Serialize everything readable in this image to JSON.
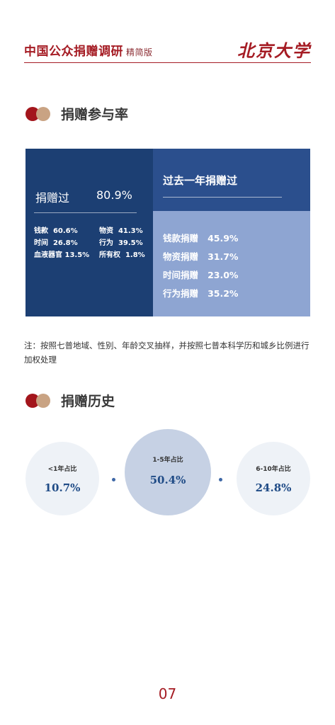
{
  "header": {
    "title": "中国公众捐赠调研",
    "subtitle": "精简版",
    "logo": "北京大学"
  },
  "section1": {
    "title": "捐赠参与率"
  },
  "left_panel": {
    "label": "捐赠过",
    "value": "80.9%",
    "items": [
      {
        "name": "钱款",
        "value": "60.6%"
      },
      {
        "name": "物资",
        "value": "41.3%"
      },
      {
        "name": "时间",
        "value": "26.8%"
      },
      {
        "name": "行为",
        "value": "39.5%"
      },
      {
        "name": "血液器官",
        "value": "13.5%"
      },
      {
        "name": "所有权",
        "value": "1.8%"
      }
    ]
  },
  "right_panel": {
    "title": "过去一年捐赠过",
    "items": [
      {
        "name": "钱款捐赠",
        "value": "45.9%"
      },
      {
        "name": "物资捐赠",
        "value": "31.7%"
      },
      {
        "name": "时间捐赠",
        "value": "23.0%"
      },
      {
        "name": "行为捐赠",
        "value": "35.2%"
      }
    ]
  },
  "note": "注：按照七普地域、性别、年龄交叉抽样，并按照七普本科学历和城乡比例进行加权处理",
  "section2": {
    "title": "捐赠历史",
    "circles": [
      {
        "label": "<1年占比",
        "value": "10.7%"
      },
      {
        "label": "1-5年占比",
        "value": "50.4%"
      },
      {
        "label": "6-10年占比",
        "value": "24.8%"
      }
    ]
  },
  "page_number": "07",
  "colors": {
    "accent_red": "#a51c24",
    "navy": "#1c3f73",
    "mid_blue": "#2b4f8d",
    "light_blue": "#8ea5d2"
  }
}
